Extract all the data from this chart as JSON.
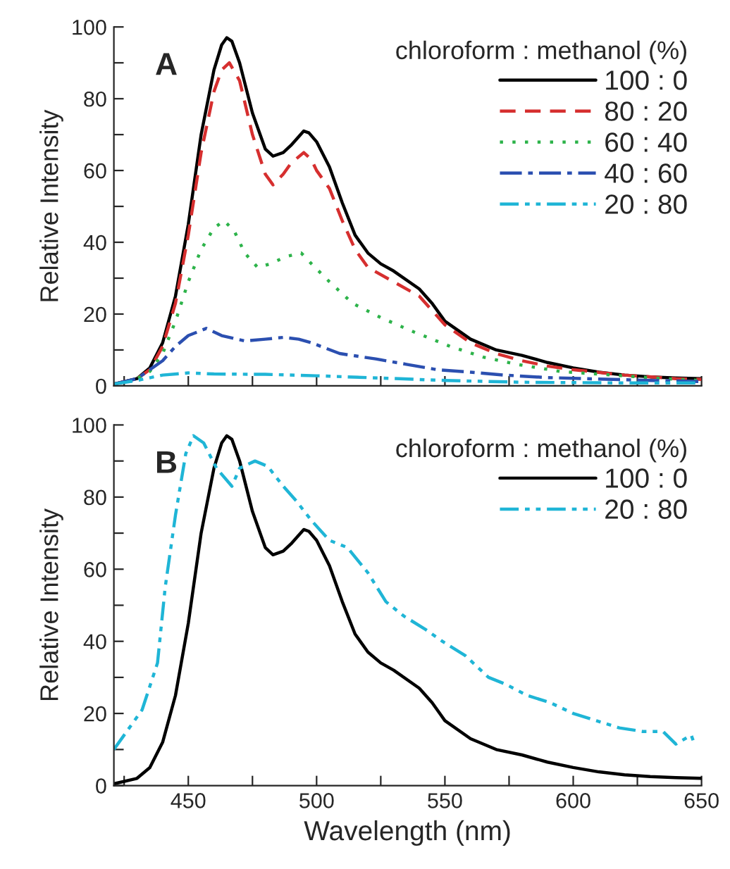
{
  "chart_data": [
    {
      "type": "line",
      "annotations": [
        "A"
      ],
      "ylabel": "Relative Intensity",
      "legend_title": "chloroform : methanol (%)",
      "legend": "top right",
      "tick_labels": "y",
      "grid": false,
      "xlim": [
        421,
        650
      ],
      "ylim": [
        0,
        100
      ],
      "xticks": [
        {
          "value": 425,
          "label": null
        },
        {
          "value": 450,
          "label": null
        },
        {
          "value": 475,
          "label": null
        },
        {
          "value": 500,
          "label": null
        },
        {
          "value": 525,
          "label": null
        },
        {
          "value": 550,
          "label": null
        },
        {
          "value": 575,
          "label": null
        },
        {
          "value": 600,
          "label": null
        },
        {
          "value": 625,
          "label": null
        },
        {
          "value": 650,
          "label": null
        }
      ],
      "yticks": [
        0,
        {
          "value": 10,
          "label": null
        },
        20,
        {
          "value": 30,
          "label": null
        },
        40,
        {
          "value": 50,
          "label": null
        },
        60,
        {
          "value": 70,
          "label": null
        },
        80,
        {
          "value": 90,
          "label": null
        },
        100
      ],
      "series": [
        {
          "name": "100 : 0",
          "color": "#000000",
          "line_style": "solid",
          "x": [
            421,
            430,
            435,
            440,
            445,
            450,
            455,
            460,
            463,
            465,
            467,
            470,
            475,
            480,
            483,
            487,
            490,
            495,
            497,
            500,
            505,
            510,
            515,
            520,
            525,
            530,
            540,
            545,
            550,
            560,
            570,
            580,
            590,
            600,
            610,
            620,
            630,
            640,
            650
          ],
          "values": [
            0.5,
            2,
            5,
            12,
            25,
            45,
            70,
            88,
            95,
            97,
            96,
            90,
            76,
            66,
            64,
            65,
            67,
            71,
            70.5,
            68,
            61,
            51,
            42,
            37,
            34,
            32,
            27,
            23,
            18,
            13,
            10,
            8.5,
            6.5,
            5,
            3.8,
            3,
            2.5,
            2.2,
            2
          ]
        },
        {
          "name": "80 : 20",
          "color": "#d62f2f",
          "line_style": "dashed",
          "x": [
            421,
            430,
            435,
            440,
            445,
            450,
            455,
            460,
            463,
            466,
            470,
            475,
            480,
            483,
            487,
            490,
            495,
            498,
            500,
            505,
            510,
            515,
            520,
            530,
            540,
            545,
            550,
            560,
            570,
            580,
            590,
            600,
            620,
            640,
            650
          ],
          "values": [
            0.5,
            2,
            4.5,
            11,
            23,
            42,
            65,
            82,
            88,
            90,
            85,
            70,
            59,
            56,
            59,
            62,
            65,
            63,
            60,
            55,
            46,
            38,
            33,
            29,
            25,
            21,
            17,
            12,
            9,
            7,
            5.5,
            4.5,
            3,
            2,
            1.8
          ]
        },
        {
          "name": "60 : 40",
          "color": "#2db34a",
          "line_style": "dotted",
          "x": [
            421,
            430,
            435,
            440,
            445,
            450,
            455,
            460,
            464,
            468,
            472,
            477,
            482,
            488,
            494,
            498,
            505,
            514,
            525,
            538,
            552,
            565,
            578,
            595,
            615,
            635,
            650
          ],
          "values": [
            0.5,
            2,
            4,
            9,
            18,
            29,
            38,
            44,
            46,
            43,
            37,
            33,
            34,
            36,
            37,
            34,
            29,
            23,
            19,
            15,
            11,
            8,
            6,
            4,
            3,
            2,
            1.5
          ]
        },
        {
          "name": "40 : 60",
          "color": "#2b4fb0",
          "line_style": "dashdot",
          "x": [
            421,
            430,
            440,
            445,
            450,
            457,
            463,
            472,
            480,
            487,
            493,
            498,
            509,
            523,
            535,
            547,
            560,
            573,
            590,
            605,
            630,
            650
          ],
          "values": [
            0.5,
            2,
            7,
            11,
            14,
            16,
            14,
            12.5,
            13,
            13.5,
            13,
            12,
            9,
            7.5,
            6,
            4.5,
            3.8,
            3,
            2.3,
            2,
            1.5,
            1.2
          ]
        },
        {
          "name": "20 : 80",
          "color": "#1fb5d6",
          "line_style": "dashdotdot",
          "x": [
            421,
            430,
            440,
            450,
            460,
            480,
            500,
            520,
            550,
            580,
            620,
            650
          ],
          "values": [
            0.5,
            1.5,
            3,
            3.6,
            3.3,
            3.2,
            2.8,
            2.3,
            1.5,
            1,
            0.8,
            0.8
          ]
        }
      ]
    },
    {
      "type": "line",
      "annotations": [
        "B"
      ],
      "xlabel": "Wavelength (nm)",
      "ylabel": "Relative Intensity",
      "legend_title": "chloroform : methanol (%)",
      "legend": "top right",
      "grid": false,
      "xlim": [
        421,
        650
      ],
      "ylim": [
        0,
        100
      ],
      "xticks": [
        {
          "value": 425,
          "label": null
        },
        450,
        {
          "value": 475,
          "label": null
        },
        500,
        {
          "value": 525,
          "label": null
        },
        550,
        {
          "value": 575,
          "label": null
        },
        600,
        {
          "value": 625,
          "label": null
        },
        650
      ],
      "yticks": [
        0,
        {
          "value": 10,
          "label": null
        },
        20,
        {
          "value": 30,
          "label": null
        },
        40,
        {
          "value": 50,
          "label": null
        },
        60,
        {
          "value": 70,
          "label": null
        },
        80,
        {
          "value": 90,
          "label": null
        },
        100
      ],
      "series": [
        {
          "name": "100 : 0",
          "color": "#000000",
          "line_style": "solid",
          "x": [
            421,
            430,
            435,
            440,
            445,
            450,
            455,
            460,
            463,
            465,
            467,
            470,
            475,
            480,
            483,
            487,
            490,
            495,
            497,
            500,
            505,
            510,
            515,
            520,
            525,
            530,
            540,
            545,
            550,
            560,
            570,
            580,
            590,
            600,
            610,
            620,
            630,
            640,
            650
          ],
          "values": [
            0.5,
            2,
            5,
            12,
            25,
            45,
            70,
            88,
            95,
            97,
            96,
            90,
            76,
            66,
            64,
            65,
            67,
            71,
            70.5,
            68,
            61,
            51,
            42,
            37,
            34,
            32,
            27,
            23,
            18,
            13,
            10,
            8.5,
            6.5,
            5,
            3.8,
            3,
            2.5,
            2.2,
            2
          ]
        },
        {
          "name": "20 : 80",
          "color": "#1fb5d6",
          "line_style": "dashdotdot",
          "x": [
            421,
            432,
            438,
            441,
            445,
            449,
            452,
            456,
            461,
            467,
            470,
            476,
            481,
            487,
            492,
            498,
            505,
            512,
            520,
            527,
            534,
            542,
            549,
            558,
            567,
            574,
            582,
            591,
            600,
            609,
            618,
            627,
            635,
            640,
            646,
            647
          ],
          "values": [
            10,
            21,
            34,
            55,
            75,
            92,
            97,
            95,
            88,
            83,
            88,
            90,
            88.5,
            83,
            79,
            73.5,
            68,
            66,
            59,
            51,
            47,
            43.5,
            40,
            36,
            30,
            28,
            25,
            23,
            20,
            18,
            16,
            15,
            15,
            11.5,
            14,
            12
          ]
        }
      ]
    }
  ]
}
